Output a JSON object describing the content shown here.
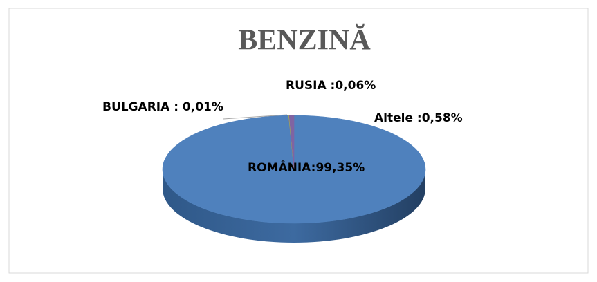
{
  "chart_data": {
    "type": "pie",
    "title": "BENZINĂ",
    "values": [
      99.35,
      0.01,
      0.06,
      0.58
    ],
    "value_labels": [
      "ROMÂNIA:99,35%",
      "BULGARIA : 0,01%",
      "RUSIA :0,06%",
      "Altele :0,58%"
    ],
    "colors": [
      "#4f81bd",
      "#c0504d",
      "#9bbb59",
      "#8064a2"
    ]
  }
}
